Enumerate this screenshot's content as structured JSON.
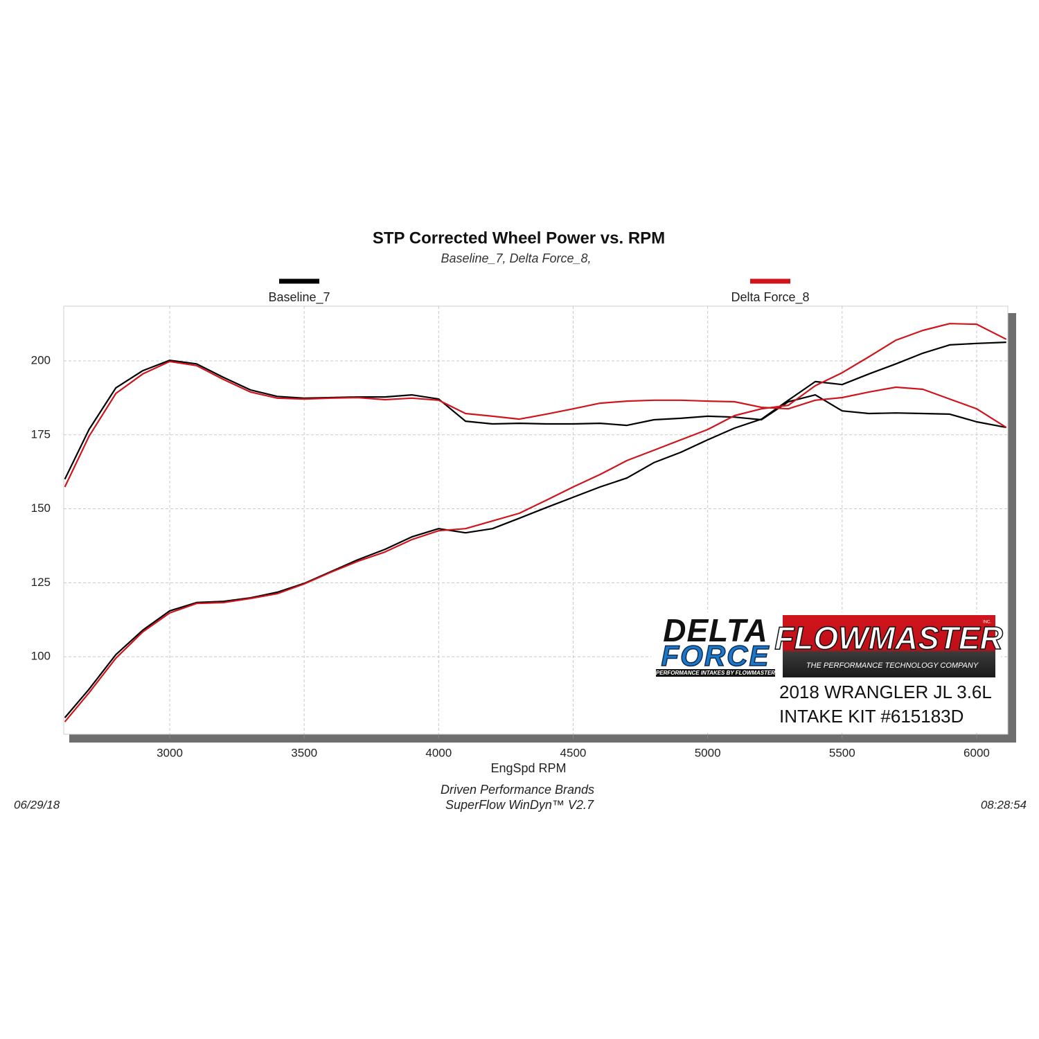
{
  "chart_data": {
    "type": "line",
    "title": "STP Corrected Wheel Power vs. RPM",
    "subtitle": "Baseline_7, Delta Force_8,",
    "x_label": "EngSpd  RPM",
    "footer": [
      "Driven Performance Brands",
      "SuperFlow WinDyn™  V2.7"
    ],
    "date": "06/29/18",
    "time": "08:28:54",
    "logos": {
      "delta": "DELTA",
      "force": "FORCE",
      "delta_tagline": "PERFORMANCE INTAKES BY FLOWMASTER",
      "flowmaster": "FLOWMASTER",
      "inc": "INC.",
      "flowmaster_tagline": "THE PERFORMANCE TECHNOLOGY COMPANY"
    },
    "annotations": [
      "2018 WRANGLER JL 3.6L",
      "INTAKE KIT #615183D"
    ],
    "x": [
      2610,
      2700,
      2800,
      2900,
      3000,
      3100,
      3200,
      3300,
      3400,
      3500,
      3600,
      3700,
      3800,
      3900,
      4000,
      4100,
      4200,
      4300,
      4400,
      4500,
      4600,
      4700,
      4800,
      4900,
      5000,
      5100,
      5200,
      5300,
      5400,
      5500,
      5600,
      5700,
      5800,
      5900,
      6000,
      6110
    ],
    "series": [
      {
        "name": "Baseline_7",
        "color": "#000000",
        "values": [
          79.4,
          89,
          100.7,
          109,
          115.5,
          118.3,
          118.7,
          119.9,
          121.8,
          124.8,
          128.8,
          132.8,
          136.3,
          140.5,
          143.3,
          141.9,
          143.3,
          146.8,
          150.4,
          153.9,
          157.4,
          160.4,
          165.6,
          169.1,
          173.3,
          177.3,
          180.3,
          186.7,
          193,
          192,
          195.6,
          199,
          202.6,
          205.4,
          205.9,
          206.3
        ],
        "values_2": [
          160,
          176.8,
          190.9,
          196.7,
          200.2,
          199,
          194.4,
          190.2,
          188,
          187.4,
          187.6,
          187.8,
          187.8,
          188.5,
          187.1,
          179.6,
          178.7,
          178.9,
          178.7,
          178.7,
          178.9,
          178.2,
          180.1,
          180.6,
          181.3,
          181,
          180.1,
          186.2,
          188.5,
          183.1,
          182.2,
          182.4,
          182.2,
          182,
          179.4,
          177.5
        ]
      },
      {
        "name": "Delta Force_8",
        "color": "#d0141c",
        "values": [
          78,
          87.8,
          99.5,
          108.4,
          114.8,
          118,
          118.3,
          119.7,
          121.3,
          124.6,
          128.6,
          132.3,
          135.4,
          139.6,
          142.6,
          143.3,
          145.9,
          148.5,
          152.9,
          157.4,
          161.6,
          166.3,
          169.8,
          173.3,
          176.8,
          181.5,
          183.8,
          185,
          191.6,
          196,
          201.4,
          207,
          210.3,
          212.6,
          212.4,
          207.3
        ],
        "values_2": [
          157.4,
          174.5,
          189,
          195.6,
          199.8,
          198.4,
          193.7,
          189.5,
          187.4,
          187.1,
          187.4,
          187.6,
          186.9,
          187.4,
          186.7,
          182.2,
          181.3,
          180.3,
          182,
          183.8,
          185.7,
          186.4,
          186.7,
          186.7,
          186.4,
          186.2,
          184.3,
          183.8,
          186.7,
          187.6,
          189.5,
          191.1,
          190.4,
          187.1,
          183.8,
          177.5
        ]
      }
    ],
    "xlim": [
      2606,
      6116
    ],
    "ylim": [
      73.8,
      218.5
    ],
    "xticks": [
      3000,
      3500,
      4000,
      4500,
      5000,
      5500,
      6000
    ],
    "yticks": [
      100,
      125,
      150,
      175,
      200
    ],
    "grid": true
  }
}
